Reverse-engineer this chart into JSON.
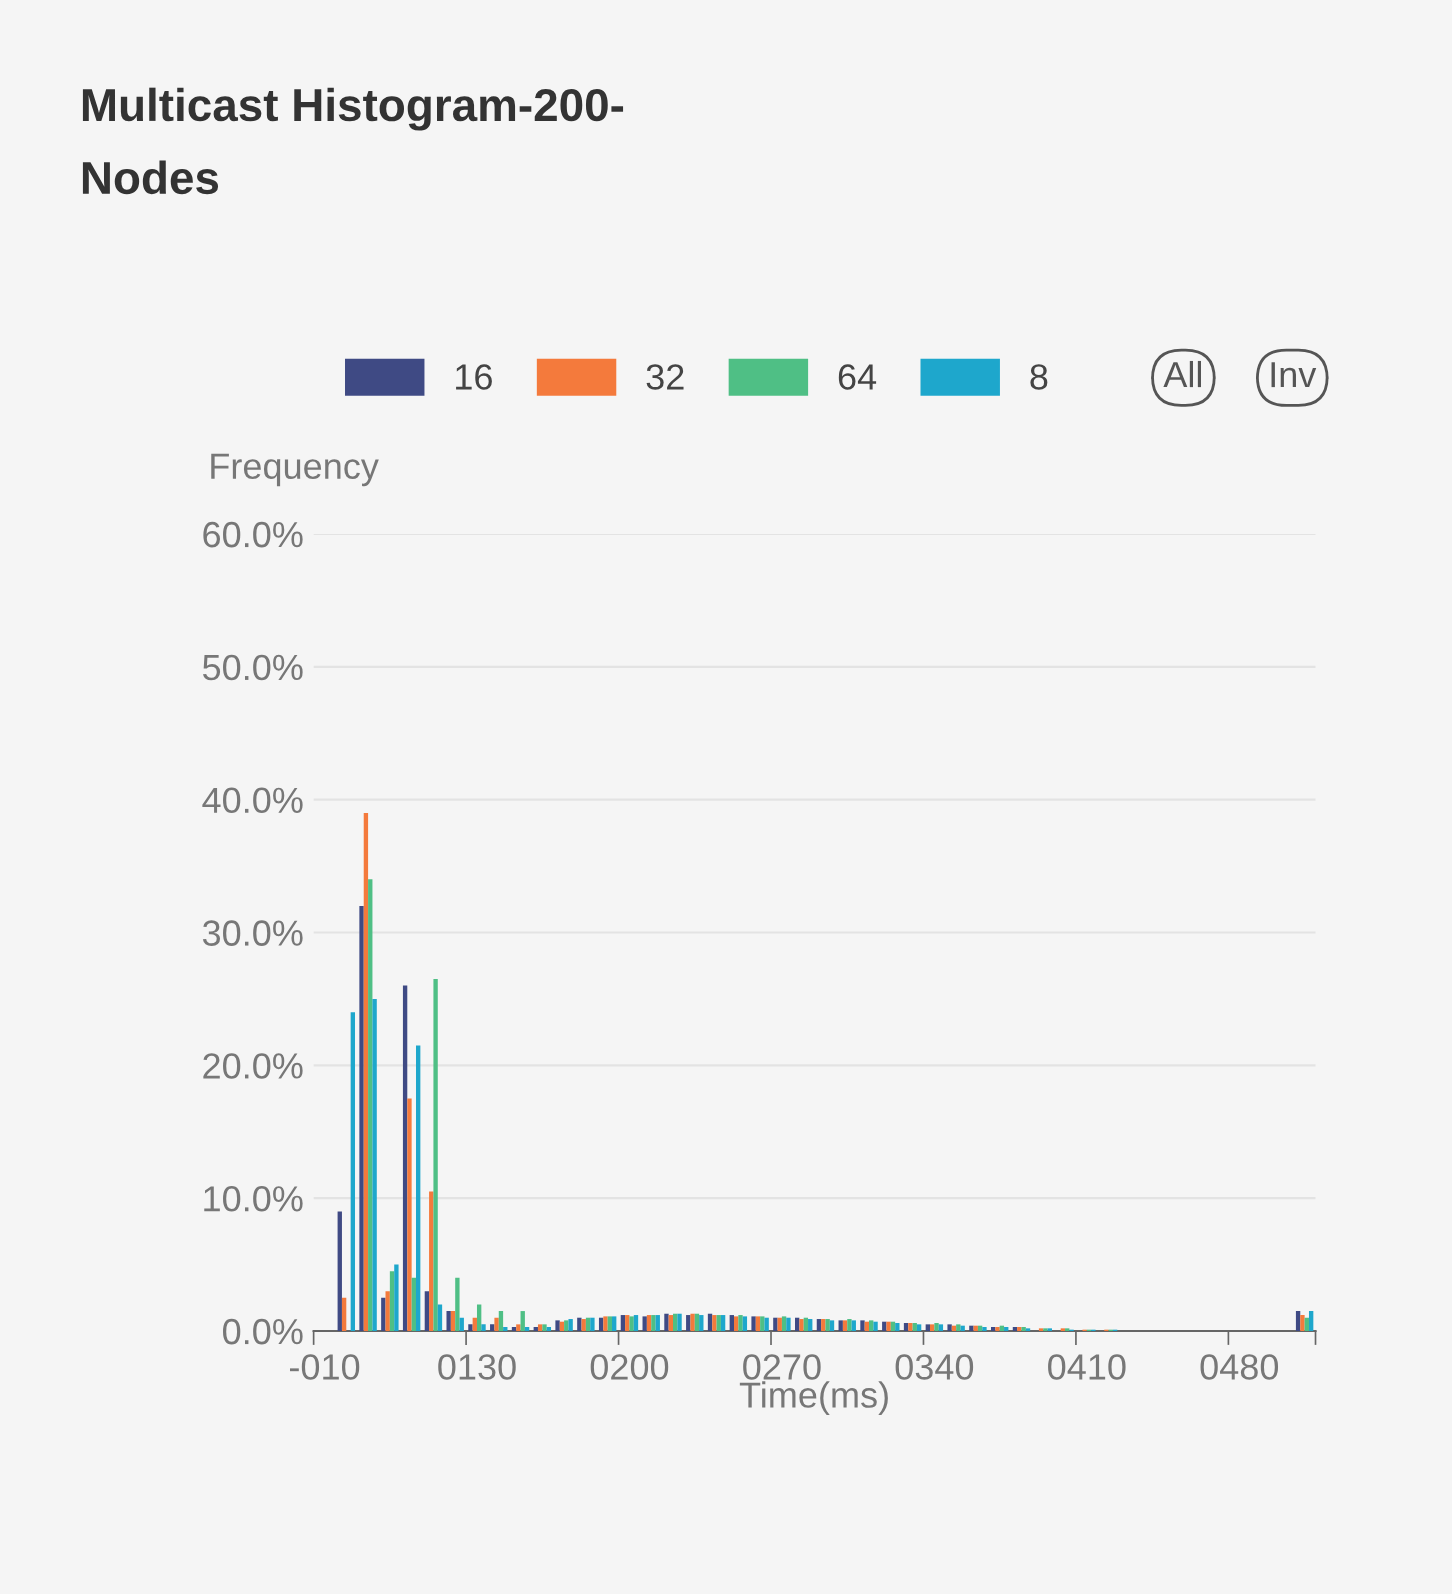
{
  "chart_data": {
    "type": "bar",
    "title": "Multicast Histogram-200-\nNodes",
    "xlabel": "Time(ms)",
    "ylabel": "Frequency",
    "annotations": [
      "All",
      "Inv"
    ],
    "categories": [
      "-010",
      null,
      null,
      null,
      null,
      null,
      null,
      "0130",
      null,
      null,
      null,
      null,
      null,
      null,
      "0200",
      null,
      null,
      null,
      null,
      null,
      null,
      "0270",
      null,
      null,
      null,
      null,
      null,
      null,
      "0340",
      null,
      null,
      null,
      null,
      null,
      null,
      "0410",
      null,
      null,
      null,
      null,
      null,
      null,
      "0480",
      null,
      null,
      null
    ],
    "series": [
      {
        "name": "16",
        "color": "#3f4a84",
        "values": [
          0,
          9,
          32,
          2.5,
          26,
          3,
          1.5,
          0.5,
          0.5,
          0.3,
          0.3,
          0.8,
          1.0,
          1.0,
          1.2,
          1.1,
          1.3,
          1.2,
          1.3,
          1.2,
          1.1,
          1.0,
          1.0,
          0.9,
          0.8,
          0.8,
          0.7,
          0.6,
          0.5,
          0.5,
          0.4,
          0.3,
          0.3,
          null,
          null,
          null,
          null,
          0,
          0,
          0,
          0,
          0,
          0,
          0,
          0,
          1.5
        ]
      },
      {
        "name": "32",
        "color": "#f47a3c",
        "values": [
          0,
          2.5,
          39,
          3,
          17.5,
          10.5,
          1.5,
          1,
          1,
          0.5,
          0.5,
          0.7,
          0.9,
          1.1,
          1.2,
          1.2,
          1.2,
          1.3,
          1.2,
          1.1,
          1.1,
          1.0,
          0.9,
          0.9,
          0.8,
          0.7,
          0.7,
          0.6,
          0.5,
          0.4,
          0.4,
          0.3,
          0.3,
          0.2,
          0.2,
          0.1,
          0.1,
          0,
          0,
          0,
          0,
          0,
          0,
          0,
          0,
          1.2
        ]
      },
      {
        "name": "64",
        "color": "#4fbf85",
        "values": [
          0,
          0,
          34,
          4.5,
          4,
          26.5,
          4,
          2,
          1.5,
          1.5,
          0.5,
          0.8,
          1.0,
          1.1,
          1.1,
          1.2,
          1.3,
          1.3,
          1.2,
          1.2,
          1.1,
          1.1,
          1.0,
          0.9,
          0.9,
          0.8,
          0.7,
          0.6,
          0.6,
          0.5,
          0.4,
          0.4,
          0.3,
          0.2,
          0.2,
          0.1,
          0.1,
          0,
          0,
          0,
          0,
          0,
          0,
          0,
          0,
          1.0
        ]
      },
      {
        "name": "8",
        "color": "#1ea7cc",
        "values": [
          0,
          24,
          25,
          5,
          21.5,
          2,
          1,
          0.5,
          0.3,
          0.3,
          0.3,
          0.9,
          1.0,
          1.1,
          1.2,
          1.2,
          1.3,
          1.2,
          1.2,
          1.1,
          1.0,
          1.0,
          0.9,
          0.8,
          0.8,
          0.7,
          0.6,
          0.5,
          0.5,
          0.4,
          0.3,
          0.3,
          0.2,
          0.2,
          0.1,
          0.1,
          0.1,
          0,
          0,
          0,
          0,
          0,
          0,
          0,
          0,
          1.5
        ]
      }
    ],
    "ylim": [
      0,
      60
    ],
    "yticks": [
      {
        "value": 0,
        "label": "0.0%"
      },
      {
        "value": 10,
        "label": "10.0%"
      },
      {
        "value": 20,
        "label": "20.0%"
      },
      {
        "value": 30,
        "label": "30.0%"
      },
      {
        "value": 40,
        "label": "40.0%"
      },
      {
        "value": 50,
        "label": "50.0%"
      },
      {
        "value": 60,
        "label": "60.0%"
      }
    ],
    "grid": "y",
    "legend": "top"
  }
}
